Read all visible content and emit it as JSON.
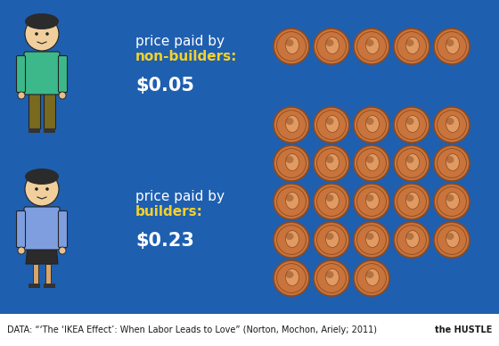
{
  "chart_data": {
    "type": "pictogram",
    "label_prefix": "price paid by",
    "categories": [
      "non-builders:",
      "builders:"
    ],
    "values": [
      0.05,
      0.23
    ],
    "value_labels": [
      "$0.05",
      "$0.23"
    ],
    "source": "DATA: “‘The ‘IKEA Effect’: When Labor Leads to Love” (Norton, Mochon, Ariely; 2011)",
    "logo": "the HUSTLE"
  }
}
